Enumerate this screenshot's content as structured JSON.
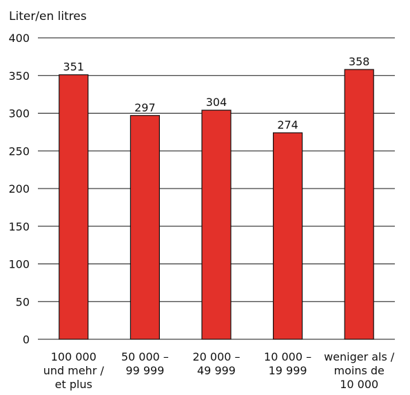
{
  "chart_data": {
    "type": "bar",
    "title": "",
    "ylabel": "Liter/en litres",
    "xlabel": "",
    "ylim": [
      0,
      400
    ],
    "yticks": [
      0,
      50,
      100,
      150,
      200,
      250,
      300,
      350,
      400
    ],
    "grid": true,
    "categories": [
      [
        "100 000",
        "und mehr /",
        "et plus"
      ],
      [
        "50 000 –",
        "99 999"
      ],
      [
        "20 000 –",
        "49 999"
      ],
      [
        "10 000 –",
        "19 999"
      ],
      [
        "weniger als /",
        "moins de",
        "10 000"
      ]
    ],
    "values": [
      351,
      297,
      304,
      274,
      358
    ],
    "data_labels": [
      "351",
      "297",
      "304",
      "274",
      "358"
    ],
    "bar_color": "#e3312a",
    "bar_edge_color": "#111111"
  }
}
